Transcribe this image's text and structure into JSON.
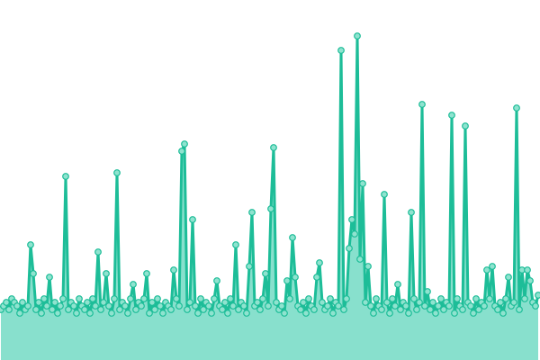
{
  "chart_data": {
    "type": "area",
    "title": "",
    "xlabel": "",
    "ylabel": "",
    "ylim": [
      0,
      100
    ],
    "grid": false,
    "markers": true,
    "colors": {
      "line": "#1dbd98",
      "fill": "#88e0cd",
      "marker_fill": "#8fe3cf",
      "marker_stroke": "#1dbd98"
    },
    "values": [
      14,
      15,
      16,
      14,
      17,
      16,
      15,
      13,
      16,
      14,
      15,
      32,
      24,
      14,
      16,
      13,
      17,
      15,
      23,
      14,
      16,
      13,
      15,
      17,
      51,
      14,
      16,
      15,
      13,
      17,
      15,
      14,
      16,
      13,
      17,
      15,
      30,
      14,
      16,
      24,
      15,
      13,
      17,
      52,
      14,
      16,
      15,
      13,
      17,
      21,
      14,
      16,
      15,
      17,
      24,
      13,
      16,
      14,
      17,
      15,
      13,
      16,
      15,
      14,
      25,
      17,
      15,
      58,
      60,
      14,
      16,
      39,
      15,
      13,
      17,
      14,
      16,
      15,
      13,
      17,
      22,
      15,
      14,
      16,
      13,
      17,
      15,
      32,
      14,
      16,
      15,
      13,
      26,
      41,
      15,
      16,
      14,
      17,
      24,
      15,
      42,
      59,
      16,
      14,
      15,
      13,
      22,
      17,
      34,
      23,
      15,
      14,
      16,
      13,
      17,
      15,
      14,
      23,
      27,
      16,
      14,
      15,
      17,
      13,
      16,
      15,
      86,
      14,
      17,
      31,
      39,
      35,
      90,
      28,
      49,
      16,
      26,
      15,
      13,
      17,
      15,
      14,
      46,
      16,
      13,
      17,
      15,
      21,
      14,
      16,
      15,
      13,
      41,
      17,
      14,
      16,
      71,
      15,
      19,
      14,
      16,
      13,
      15,
      17,
      14,
      16,
      15,
      68,
      13,
      17,
      15,
      14,
      65,
      16,
      15,
      13,
      17,
      14,
      16,
      15,
      25,
      17,
      26,
      15,
      14,
      16,
      13,
      17,
      23,
      15,
      16,
      70,
      14,
      25,
      17,
      25,
      22,
      16,
      15,
      18
    ]
  }
}
